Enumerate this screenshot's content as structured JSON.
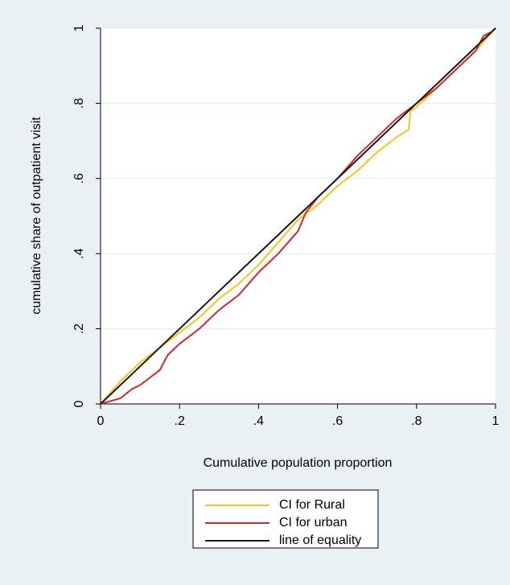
{
  "chart_data": {
    "type": "line",
    "xlabel": "Cumulative population proportion",
    "ylabel": "cumulative share of outpatient visit",
    "xlim": [
      0,
      1
    ],
    "ylim": [
      0,
      1
    ],
    "xticks": [
      0,
      {
        "value": 0.2,
        "label": ".2"
      },
      {
        "value": 0.4,
        "label": ".4"
      },
      {
        "value": 0.6,
        "label": ".6"
      },
      {
        "value": 0.8,
        "label": ".8"
      },
      1
    ],
    "yticks": [
      0,
      {
        "value": 0.2,
        "label": ".2"
      },
      {
        "value": 0.4,
        "label": ".4"
      },
      {
        "value": 0.6,
        "label": ".6"
      },
      {
        "value": 0.8,
        "label": ".8"
      },
      1
    ],
    "grid": true,
    "legend": "bottom",
    "series": [
      {
        "name": "CI for Rural",
        "color": "#f2c61f",
        "x": [
          0,
          0.05,
          0.08,
          0.1,
          0.15,
          0.2,
          0.25,
          0.3,
          0.35,
          0.4,
          0.45,
          0.5,
          0.55,
          0.6,
          0.65,
          0.7,
          0.75,
          0.78,
          0.785,
          0.8,
          0.85,
          0.9,
          0.95,
          1
        ],
        "values": [
          0,
          0.06,
          0.09,
          0.11,
          0.15,
          0.19,
          0.23,
          0.28,
          0.32,
          0.37,
          0.43,
          0.49,
          0.53,
          0.58,
          0.62,
          0.67,
          0.71,
          0.73,
          0.78,
          0.79,
          0.84,
          0.89,
          0.94,
          1
        ]
      },
      {
        "name": "CI for urban",
        "color": "#d62728",
        "x": [
          0,
          0.05,
          0.08,
          0.1,
          0.15,
          0.17,
          0.2,
          0.25,
          0.3,
          0.35,
          0.4,
          0.45,
          0.5,
          0.52,
          0.55,
          0.6,
          0.65,
          0.7,
          0.75,
          0.8,
          0.85,
          0.9,
          0.95,
          0.97,
          0.99,
          1
        ],
        "values": [
          0,
          0.015,
          0.04,
          0.05,
          0.09,
          0.13,
          0.16,
          0.2,
          0.25,
          0.29,
          0.35,
          0.4,
          0.46,
          0.51,
          0.55,
          0.6,
          0.66,
          0.71,
          0.76,
          0.8,
          0.84,
          0.89,
          0.94,
          0.98,
          0.99,
          1
        ]
      },
      {
        "name": "line of equality",
        "color": "#1a1a1a",
        "x": [
          0,
          1
        ],
        "values": [
          0,
          1
        ]
      }
    ]
  }
}
